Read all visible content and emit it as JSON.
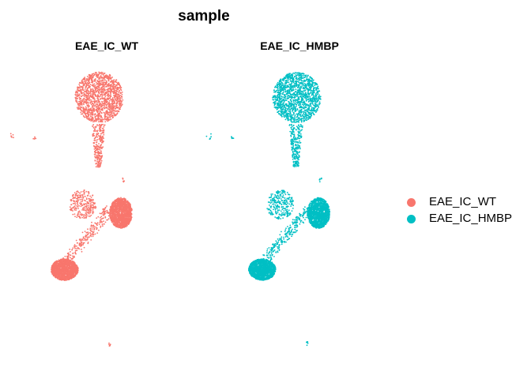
{
  "chart_data": {
    "type": "scatter",
    "title": "sample",
    "xlabel": "",
    "ylabel": "",
    "grid": false,
    "legend_position": "right",
    "facets": [
      "EAE_IC_WT",
      "EAE_IC_HMBP"
    ],
    "series": [
      {
        "name": "EAE_IC_WT",
        "color": "#F8766D",
        "facet": "EAE_IC_WT"
      },
      {
        "name": "EAE_IC_HMBP",
        "color": "#00BFC4",
        "facet": "EAE_IC_HMBP"
      }
    ],
    "clusters": [
      {
        "region": "top-round",
        "x": [
          -1.6,
          1.6
        ],
        "y": [
          3.1,
          6.4
        ],
        "density": "high"
      },
      {
        "region": "narrow-stem",
        "x": [
          -0.5,
          0.4
        ],
        "y": [
          0.2,
          3.0
        ],
        "density": "low"
      },
      {
        "region": "right-mid-blob",
        "x": [
          0.7,
          2.2
        ],
        "y": [
          -3.8,
          -1.8
        ],
        "density": "high"
      },
      {
        "region": "diagonal-band",
        "x": [
          -2.4,
          0.8
        ],
        "y": [
          -6.2,
          -2.5
        ],
        "density": "low"
      },
      {
        "region": "bottom-left-blob",
        "x": [
          -3.2,
          -1.4
        ],
        "y": [
          -7.2,
          -5.8
        ],
        "density": "high"
      },
      {
        "region": "lower-left-arm",
        "x": [
          -2.0,
          -0.2
        ],
        "y": [
          -3.2,
          -1.3
        ],
        "density": "low"
      },
      {
        "region": "outlier-far-left",
        "x": [
          -6.0,
          -5.6
        ],
        "y": [
          2.0,
          2.4
        ],
        "density": "low"
      },
      {
        "region": "outlier-left",
        "x": [
          -4.4,
          -4.2
        ],
        "y": [
          2.0,
          2.2
        ],
        "density": "low"
      },
      {
        "region": "outlier-right",
        "x": [
          1.5,
          1.7
        ],
        "y": [
          -0.8,
          -0.5
        ],
        "density": "low"
      },
      {
        "region": "outlier-bottom",
        "x": [
          0.6,
          0.8
        ],
        "y": [
          -11.5,
          -11.2
        ],
        "density": "low"
      }
    ]
  }
}
